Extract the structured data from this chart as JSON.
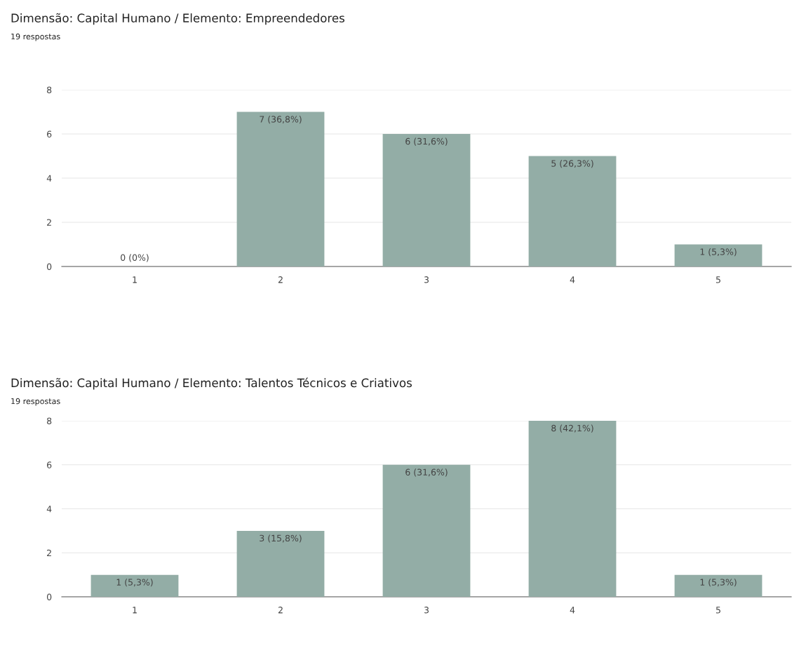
{
  "chart_data": [
    {
      "type": "bar",
      "title": "Dimensão: Capital Humano / Elemento: Empreendedores",
      "subtitle": "19 respostas",
      "categories": [
        "1",
        "2",
        "3",
        "4",
        "5"
      ],
      "values": [
        0,
        7,
        6,
        5,
        1
      ],
      "value_labels": [
        "0 (0%)",
        "7 (36,8%)",
        "6 (31,6%)",
        "5 (26,3%)",
        "1 (5,3%)"
      ],
      "color": "#93ada6",
      "ylim": [
        0,
        8
      ],
      "yticks": [
        0,
        2,
        4,
        6,
        8
      ],
      "grid": "y"
    },
    {
      "type": "bar",
      "title": "Dimensão: Capital Humano / Elemento: Talentos Técnicos e Criativos",
      "subtitle": "19 respostas",
      "categories": [
        "1",
        "2",
        "3",
        "4",
        "5"
      ],
      "values": [
        1,
        3,
        6,
        8,
        1
      ],
      "value_labels": [
        "1 (5,3%)",
        "3 (15,8%)",
        "6 (31,6%)",
        "8 (42,1%)",
        "1 (5,3%)"
      ],
      "color": "#93ada6",
      "ylim": [
        0,
        8
      ],
      "yticks": [
        0,
        2,
        4,
        6,
        8
      ],
      "grid": "y"
    }
  ]
}
